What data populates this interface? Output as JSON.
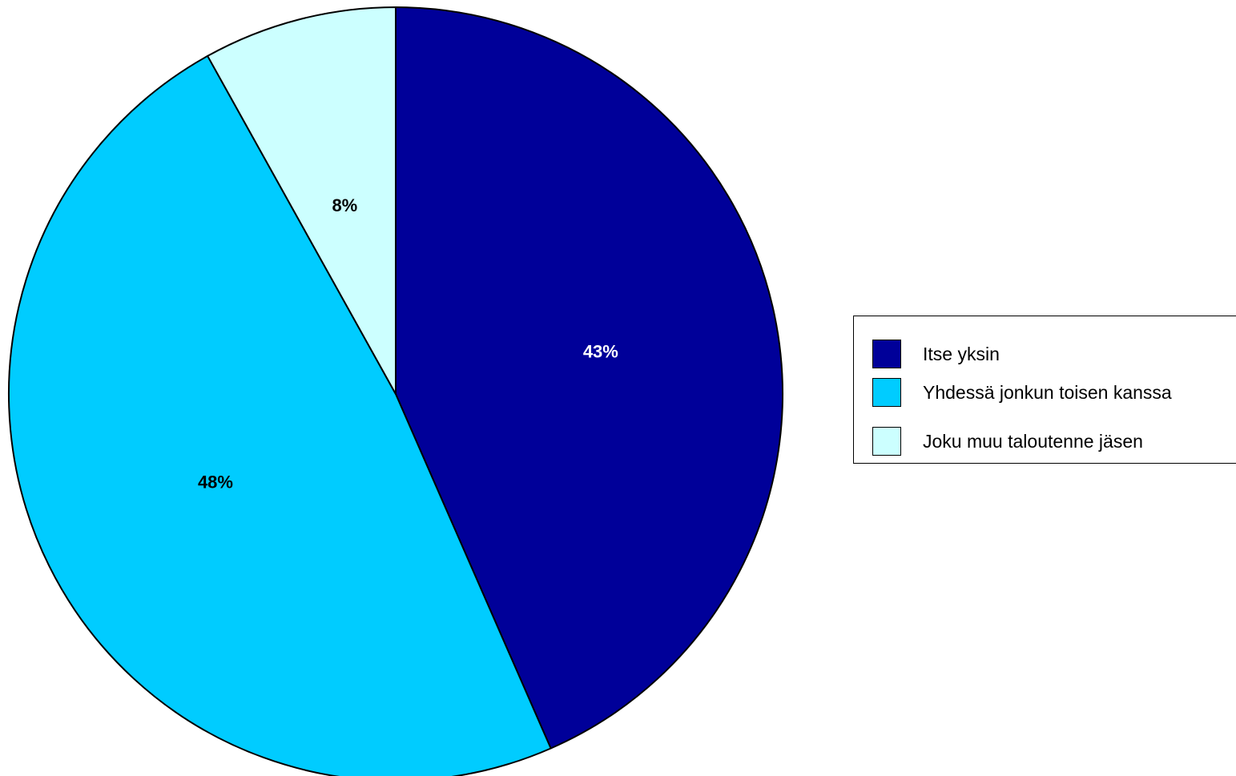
{
  "chart_data": {
    "type": "pie",
    "title": "",
    "start_angle_deg": 0,
    "direction": "clockwise",
    "slices": [
      {
        "name": "Itse yksin",
        "value": 43,
        "label": "43%",
        "color": "#000099",
        "label_color": "#ffffff"
      },
      {
        "name": "Yhdessä jonkun toisen kanssa",
        "value": 48,
        "label": "48%",
        "color": "#00CCFF",
        "label_color": "#000000"
      },
      {
        "name": "Joku muu taloutenne jäsen",
        "value": 8,
        "label": "8%",
        "color": "#CCFFFF",
        "label_color": "#000000"
      }
    ],
    "legend": {
      "position": "right",
      "entries": [
        "Itse yksin",
        "Yhdessä jonkun toisen kanssa",
        "Joku muu taloutenne jäsen"
      ]
    }
  }
}
